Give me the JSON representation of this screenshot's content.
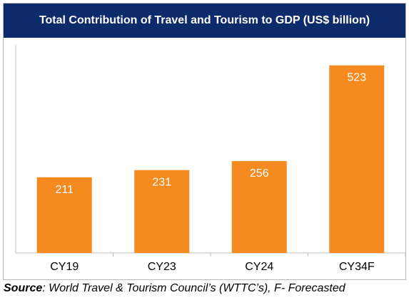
{
  "chart_data": {
    "type": "bar",
    "title": "Total Contribution of Travel and Tourism to GDP (US$ billion)",
    "categories": [
      "CY19",
      "CY23",
      "CY24",
      "CY34F"
    ],
    "values": [
      211,
      231,
      256,
      523
    ],
    "data_labels": [
      "211",
      "231",
      "256",
      "523"
    ],
    "xlabel": "",
    "ylabel": "",
    "ylim": [
      0,
      580
    ],
    "grid": false,
    "legend": "none",
    "bar_color": "#f58a21"
  },
  "source": {
    "label": "Source",
    "text": ": World Travel & Tourism Council’s (WTTC’s), F- Forecasted"
  },
  "colors": {
    "title_background": "#0d2a6b",
    "axis": "#bfbfbf"
  }
}
